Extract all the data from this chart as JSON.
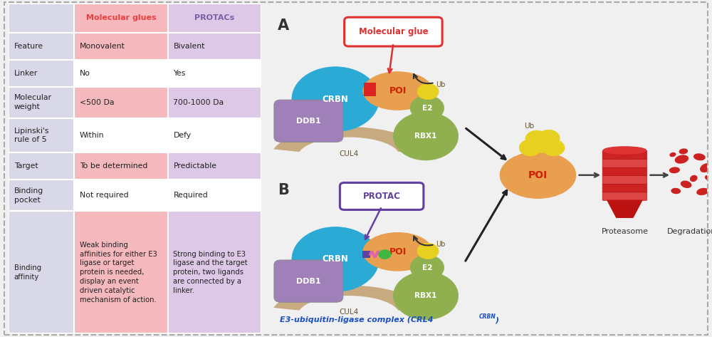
{
  "bg_color": "#f0f0f0",
  "border_color": "#aaaaaa",
  "table": {
    "col_labels": [
      "",
      "Molecular glues",
      "PROTACs"
    ],
    "col_label_colors": [
      "#888888",
      "#e84040",
      "#7b5ea7"
    ],
    "col_header_bg": [
      "#d8d8e8",
      "#f5b8bc",
      "#ddc8e8"
    ],
    "rows": [
      [
        "Feature",
        "Monovalent",
        "Bivalent"
      ],
      [
        "Linker",
        "No",
        "Yes"
      ],
      [
        "Molecular\nweight",
        "<500 Da",
        "700-1000 Da"
      ],
      [
        "Lipinski's\nrule of 5",
        "Within",
        "Defy"
      ],
      [
        "Target",
        "To be determined",
        "Predictable"
      ],
      [
        "Binding\npocket",
        "Not required",
        "Required"
      ],
      [
        "Binding\naffinity",
        "Weak binding\naffinities for either E3\nligase or target\nprotein is needed,\ndisplay an event\ndriven catalytic\nmechanism of action.",
        "Strong binding to E3\nligase and the target\nprotein, two ligands\nare connected by a\nlinker."
      ]
    ],
    "row_bg_alt1": [
      "#f5b8bc",
      "#f5b8bc",
      "#f5b8bc",
      "#f5b8bc",
      "#f5b8bc",
      "#f5b8bc",
      "#f5b8bc"
    ],
    "row_bg_alt2": [
      "#ddc8e8",
      "#ddc8e8",
      "#ddc8e8",
      "#ddc8e8",
      "#ddc8e8",
      "#ddc8e8",
      "#ddc8e8"
    ],
    "row_bg_col0": "#d8d8e8"
  },
  "diagram": {
    "crbn_color": "#2aaad4",
    "poi_color": "#e8a050",
    "ddb1_color": "#a080b8",
    "cul4_color": "#c8aa80",
    "rbx1_color": "#90b050",
    "e2_color": "#90b050",
    "ub_color": "#e8d020",
    "mol_glue_box_color": "#e03030",
    "protac_box_color": "#6040a0",
    "arrow_color": "#222222",
    "proteasome_color": "#bb2222",
    "proteasome_stripe": "#ee6666",
    "degradation_color": "#cc2222",
    "footer_color": "#1a4fc0"
  }
}
